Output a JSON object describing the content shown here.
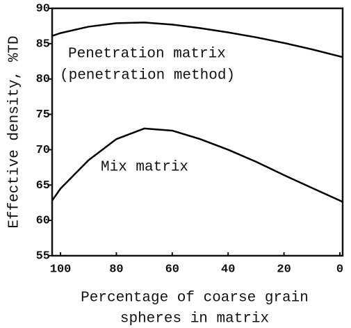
{
  "chart_data": {
    "type": "line",
    "x_label": [
      "Percentage of coarse grain",
      "spheres in matrix"
    ],
    "y_label": "Effective density, %TD",
    "x": [
      103,
      100,
      90,
      80,
      70,
      60,
      50,
      40,
      30,
      20,
      10,
      0,
      -1
    ],
    "series": [
      {
        "name": "Penetration matrix (penetration method)",
        "color": "#000000",
        "values": [
          86.1,
          86.5,
          87.4,
          87.9,
          88,
          87.7,
          87.2,
          86.6,
          85.9,
          85.1,
          84.2,
          83.2,
          83.1
        ]
      },
      {
        "name": "Mix matrix",
        "color": "#000000",
        "values": [
          62.8,
          64.5,
          68.5,
          71.5,
          73,
          72.7,
          71.5,
          70,
          68.3,
          66.4,
          64.6,
          62.8,
          62.6
        ]
      }
    ],
    "annotations": [
      "Penetration matrix",
      "(penetration method)",
      "Mix matrix"
    ],
    "xlim": [
      103,
      -1
    ],
    "xticks": [
      100,
      80,
      60,
      40,
      20,
      0
    ],
    "ylim": [
      55,
      90
    ],
    "yticks": [
      55,
      60,
      65,
      70,
      75,
      80,
      85,
      90
    ],
    "grid": false
  }
}
